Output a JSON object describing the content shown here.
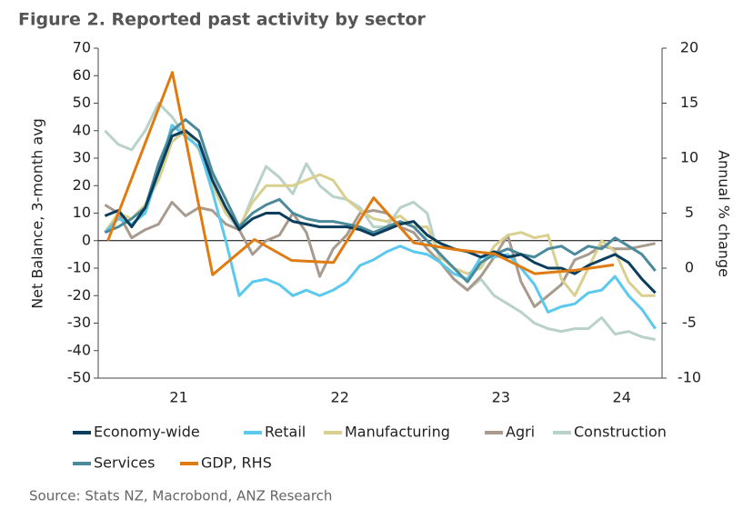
{
  "chart_data": {
    "type": "line",
    "title": "Figure 2.  Reported past activity by sector",
    "y_label": "Net Balance, 3-month avg",
    "y2_label": "Annual % change",
    "source": "Source: Stats NZ, Macrobond, ANZ Research",
    "xlim": [
      2021,
      2024.5
    ],
    "xticks": [
      {
        "value": 2021.5,
        "label": "21"
      },
      {
        "value": 2022.5,
        "label": "22"
      },
      {
        "value": 2023.5,
        "label": "23"
      },
      {
        "value": 2024.25,
        "label": "24"
      }
    ],
    "ylim": [
      -50,
      70
    ],
    "yticks": [
      -50,
      -40,
      -30,
      -20,
      -10,
      0,
      10,
      20,
      30,
      40,
      50,
      60,
      70
    ],
    "y2lim": [
      -10,
      20
    ],
    "y2ticks": [
      -10,
      -5,
      0,
      5,
      10,
      15,
      20
    ],
    "x": [
      2021.042,
      2021.125,
      2021.208,
      2021.292,
      2021.375,
      2021.458,
      2021.542,
      2021.625,
      2021.708,
      2021.792,
      2021.875,
      2021.958,
      2022.042,
      2022.125,
      2022.208,
      2022.292,
      2022.375,
      2022.458,
      2022.542,
      2022.625,
      2022.708,
      2022.792,
      2022.875,
      2022.958,
      2023.042,
      2023.125,
      2023.208,
      2023.292,
      2023.375,
      2023.458,
      2023.542,
      2023.625,
      2023.708,
      2023.792,
      2023.875,
      2023.958,
      2024.042,
      2024.125,
      2024.208,
      2024.292,
      2024.375,
      2024.458
    ],
    "series": [
      {
        "name": "Economy-wide",
        "color": "#0b3d5c",
        "values": [
          9,
          11,
          5,
          12,
          25,
          38,
          40,
          36,
          22,
          12,
          4,
          8,
          10,
          10,
          7,
          6,
          5,
          5,
          5,
          4,
          2,
          4,
          6,
          7,
          2,
          -1,
          -3,
          -4,
          -6,
          -4,
          -6,
          -5,
          -8,
          -10,
          -10,
          -12,
          -9,
          -7,
          -5,
          -8,
          -14,
          -19
        ]
      },
      {
        "name": "Retail",
        "color": "#5bc8ef",
        "values": [
          3,
          8,
          6,
          10,
          25,
          42,
          38,
          34,
          18,
          0,
          -20,
          -15,
          -14,
          -16,
          -20,
          -18,
          -20,
          -18,
          -15,
          -9,
          -7,
          -4,
          -2,
          -4,
          -5,
          -8,
          -12,
          -14,
          -6,
          -6,
          -5,
          -10,
          -16,
          -26,
          -24,
          -23,
          -19,
          -18,
          -13,
          -20,
          -25,
          -32
        ]
      },
      {
        "name": "Manufacturing",
        "color": "#d9d08f",
        "values": [
          3,
          10,
          8,
          13,
          22,
          36,
          40,
          33,
          20,
          10,
          5,
          14,
          20,
          20,
          20,
          22,
          24,
          22,
          15,
          11,
          8,
          7,
          9,
          5,
          5,
          -6,
          -10,
          -12,
          -10,
          -2,
          2,
          3,
          1,
          2,
          -14,
          -20,
          -10,
          0,
          -4,
          -15,
          -20,
          -20
        ]
      },
      {
        "name": "Agri",
        "color": "#a89b8e",
        "values": [
          13,
          10,
          1,
          4,
          6,
          14,
          9,
          12,
          11,
          6,
          4,
          -5,
          0,
          2,
          10,
          3,
          -13,
          -3,
          2,
          10,
          11,
          10,
          5,
          3,
          -3,
          -8,
          -14,
          -18,
          -13,
          -6,
          2,
          -15,
          -24,
          -20,
          -16,
          -7,
          -5,
          -2,
          -3,
          -3,
          -2,
          -1
        ]
      },
      {
        "name": "Construction",
        "color": "#b8d1c9",
        "values": [
          40,
          35,
          33,
          40,
          50,
          45,
          38,
          34,
          24,
          10,
          4,
          16,
          27,
          23,
          17,
          28,
          20,
          16,
          15,
          12,
          5,
          5,
          12,
          14,
          10,
          -8,
          -14,
          -18,
          -14,
          -20,
          -23,
          -26,
          -30,
          -32,
          -33,
          -32,
          -32,
          -28,
          -34,
          -33,
          -35,
          -36
        ]
      },
      {
        "name": "Services",
        "color": "#4a8a9a",
        "values": [
          3,
          5,
          8,
          12,
          28,
          40,
          44,
          40,
          25,
          15,
          5,
          10,
          13,
          15,
          10,
          8,
          7,
          7,
          6,
          5,
          3,
          5,
          7,
          5,
          0,
          -5,
          -10,
          -15,
          -8,
          -5,
          -3,
          -5,
          -6,
          -3,
          -2,
          -5,
          -2,
          -3,
          1,
          -2,
          -5,
          -11
        ]
      },
      {
        "name": "GDP, RHS",
        "color": "#e07b12",
        "axis": "y2",
        "x": [
          2021.06,
          2021.46,
          2021.71,
          2021.97,
          2022.2,
          2022.46,
          2022.71,
          2022.96,
          2023.21,
          2023.46,
          2023.71,
          2023.96,
          2024.2
        ],
        "values": [
          2.5,
          17.8,
          -0.6,
          2.6,
          0.7,
          0.5,
          6.4,
          2.3,
          1.7,
          1.3,
          -0.5,
          -0.2,
          0.3
        ]
      }
    ]
  }
}
